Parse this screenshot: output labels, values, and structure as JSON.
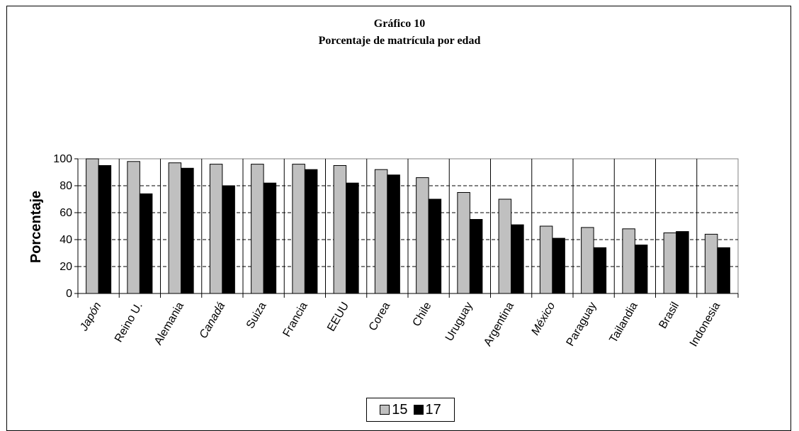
{
  "chart_data": {
    "type": "bar",
    "title": "Gráfico 10",
    "subtitle": "Porcentaje de matrícula por edad",
    "xlabel": "",
    "ylabel": "Porcentaje",
    "ylim": [
      0,
      100
    ],
    "yticks": [
      "0",
      "20",
      "40",
      "60",
      "80",
      "100"
    ],
    "ytick_values": [
      0,
      20,
      40,
      60,
      80,
      100
    ],
    "grid": true,
    "legend_position": "bottom",
    "categories": [
      "Japón",
      "Reino U.",
      "Alemania",
      "Canadá",
      "Suiza",
      "Francia",
      "EEUU",
      "Corea",
      "Chile",
      "Uruguay",
      "Argentina",
      "México",
      "Paraguay",
      "Tailandia",
      "Brasil",
      "Indonesia"
    ],
    "series": [
      {
        "name": "15",
        "color": "#c0c0c0",
        "values": [
          100,
          98,
          97,
          96,
          96,
          96,
          95,
          92,
          86,
          75,
          70,
          50,
          49,
          48,
          45,
          44
        ]
      },
      {
        "name": "17",
        "color": "#000000",
        "values": [
          95,
          74,
          93,
          80,
          82,
          92,
          82,
          88,
          70,
          55,
          51,
          41,
          34,
          36,
          46,
          34
        ]
      }
    ]
  }
}
